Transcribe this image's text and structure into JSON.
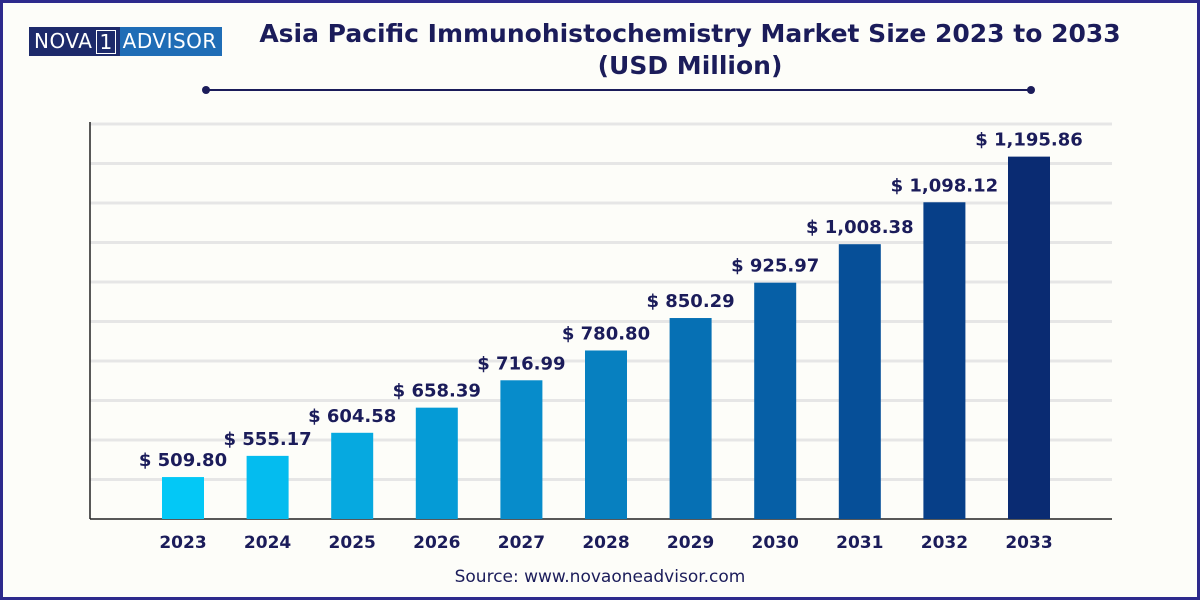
{
  "logo": {
    "left": "NOVA",
    "mid": "1",
    "right": "ADVISOR"
  },
  "title": {
    "line1": "Asia Pacific Immunohistochemistry Market Size 2023 to 2033",
    "line2": "(USD Million)"
  },
  "source": "Source: www.novaoneadvisor.com",
  "chart_data": {
    "type": "bar",
    "title": "Asia Pacific Immunohistochemistry Market Size 2023 to 2033 (USD Million)",
    "xlabel": "",
    "ylabel": "",
    "categories": [
      "2023",
      "2024",
      "2025",
      "2026",
      "2027",
      "2028",
      "2029",
      "2030",
      "2031",
      "2032",
      "2033"
    ],
    "values": [
      509.8,
      555.17,
      604.58,
      658.39,
      716.99,
      780.8,
      850.29,
      925.97,
      1008.38,
      1098.12,
      1195.86
    ],
    "labels": [
      "$ 509.80",
      "$ 555.17",
      "$ 604.58",
      "$ 658.39",
      "$ 716.99",
      "$ 780.80",
      "$ 850.29",
      "$ 925.97",
      "$ 1,008.38",
      "$ 1,098.12",
      "$ 1,195.86"
    ],
    "ylim": [
      420,
      1270
    ],
    "grid": true,
    "colors": [
      "#03c8f6",
      "#04bcef",
      "#06a9e0",
      "#059bd6",
      "#078ccb",
      "#0780c0",
      "#0670b4",
      "#065fa6",
      "#064f98",
      "#073f88",
      "#0a2b72"
    ]
  }
}
